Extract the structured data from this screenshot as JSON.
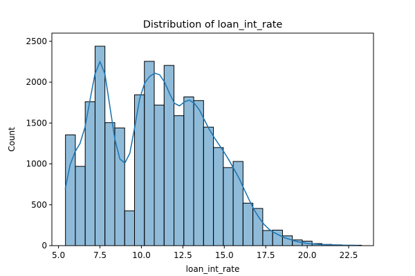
{
  "chart_data": {
    "type": "bar",
    "subtype": "histogram",
    "title": "Distribution of loan_int_rate",
    "xlabel": "loan_int_rate",
    "ylabel": "Count",
    "xlim": [
      4.6,
      24.0
    ],
    "ylim": [
      0,
      2600
    ],
    "x_ticks": [
      "5.0",
      "7.5",
      "10.0",
      "12.5",
      "15.0",
      "17.5",
      "20.0",
      "22.5"
    ],
    "x_tick_values": [
      5.0,
      7.5,
      10.0,
      12.5,
      15.0,
      17.5,
      20.0,
      22.5
    ],
    "y_ticks": [
      "0",
      "500",
      "1000",
      "1500",
      "2000",
      "2500"
    ],
    "y_tick_values": [
      0,
      500,
      1000,
      1500,
      2000,
      2500
    ],
    "bin_start": 5.42,
    "bin_width": 0.595,
    "counts": [
      1355,
      970,
      1760,
      2440,
      1505,
      1440,
      425,
      1845,
      2255,
      1720,
      2205,
      1590,
      1820,
      1775,
      1450,
      1200,
      955,
      1030,
      520,
      455,
      185,
      190,
      120,
      70,
      55,
      25,
      15,
      10,
      5,
      5
    ],
    "kde": {
      "x": [
        5.4,
        5.7,
        6.0,
        6.3,
        6.6,
        6.9,
        7.2,
        7.5,
        7.8,
        8.1,
        8.4,
        8.7,
        9.0,
        9.3,
        9.6,
        9.9,
        10.2,
        10.5,
        10.8,
        11.1,
        11.4,
        11.7,
        12.0,
        12.3,
        12.6,
        12.9,
        13.2,
        13.5,
        13.8,
        14.1,
        14.4,
        14.7,
        15.0,
        15.3,
        15.6,
        15.9,
        16.2,
        16.5,
        16.8,
        17.1,
        17.4,
        17.7,
        18.0,
        18.3,
        18.6,
        18.9,
        19.2,
        19.5,
        19.8,
        20.1,
        20.4,
        20.7,
        21.0,
        21.3,
        21.6,
        21.9,
        22.2,
        22.5,
        22.8,
        23.1
      ],
      "y": [
        690,
        990,
        1150,
        1250,
        1450,
        1780,
        2100,
        2250,
        2100,
        1700,
        1300,
        1060,
        1010,
        1130,
        1450,
        1800,
        1990,
        2070,
        2110,
        2090,
        2000,
        1860,
        1740,
        1710,
        1760,
        1780,
        1740,
        1660,
        1540,
        1420,
        1320,
        1230,
        1140,
        1040,
        930,
        820,
        690,
        560,
        440,
        340,
        260,
        200,
        160,
        130,
        100,
        80,
        60,
        45,
        35,
        25,
        20,
        15,
        12,
        10,
        8,
        6,
        5,
        4,
        3,
        2
      ]
    }
  }
}
